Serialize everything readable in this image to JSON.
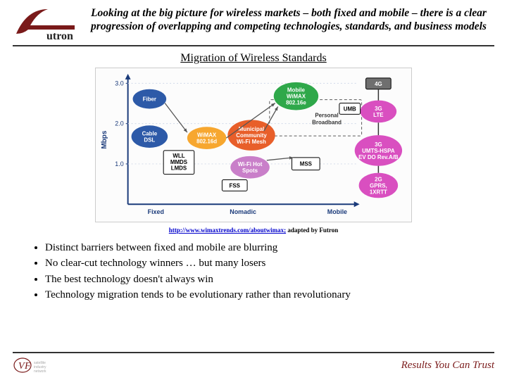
{
  "header": {
    "title": "Looking at the big picture for wireless markets – both fixed and mobile – there is a clear progression of overlapping and competing technologies, standards, and business models"
  },
  "chart": {
    "title": "Migration of Wireless Standards",
    "y_label": "Mbps",
    "y_ticks": [
      "1.0",
      "2.0",
      "3.0"
    ],
    "x_ticks": [
      "Fixed",
      "Nomadic",
      "Mobile"
    ],
    "colors": {
      "fiber": "#2d5aa8",
      "cable_dsl": "#2d5aa8",
      "wll": "#ffffff",
      "wimax_d": "#f7a72f",
      "wifi_hot": "#c97fc9",
      "muni_wifi": "#e85f2a",
      "mobile_wimax": "#2fa84a",
      "mss_bg": "#ffffff",
      "pb_box": "#5a5a5a",
      "umb": "#ffffff",
      "g4": "#6f6f6f",
      "g3_lte": "#d94fc0",
      "g3": "#d94fc0",
      "g2": "#d94fc0",
      "fss_bg": "#ffffff",
      "axis": "#1a3a7a",
      "grid": "#cfd8e8"
    },
    "nodes": {
      "fiber": "Fiber",
      "cable_dsl_1": "Cable",
      "cable_dsl_2": "DSL",
      "wll_1": "WLL",
      "wll_2": "MMDS",
      "wll_3": "LMDS",
      "wimax_d_1": "WiMAX",
      "wimax_d_2": "802.16d",
      "wifi_hot_1": "Wi-Fi Hot",
      "wifi_hot_2": "Spots",
      "muni_1": "Municipal",
      "muni_2": "Community",
      "muni_3": "Wi-Fi Mesh",
      "mobile_wimax_1": "Mobile",
      "mobile_wimax_2": "WiMAX",
      "mobile_wimax_3": "802.16e",
      "mss": "MSS",
      "fss": "FSS",
      "umb": "UMB",
      "pb_1": "Personal",
      "pb_2": "Broadband",
      "g4": "4G",
      "g3_lte_1": "3G",
      "g3_lte_2": "LTE",
      "g3_1": "3G",
      "g3_2": "UMTS-HSPA",
      "g3_3": "EV DO Rev.A/B",
      "g2_1": "2G",
      "g2_2": "GPRS,",
      "g2_3": "1XRTT"
    }
  },
  "source": {
    "url_text": "http://www.wimaxtrends.com/aboutwimax;",
    "suffix": " adapted by Futron"
  },
  "bullets": [
    "Distinct barriers between fixed and mobile are blurring",
    "No clear-cut technology winners … but many losers",
    "The best technology doesn't always win",
    "Technology migration tends to be evolutionary rather than revolutionary"
  ],
  "footer": {
    "tagline": "Results You Can Trust"
  }
}
